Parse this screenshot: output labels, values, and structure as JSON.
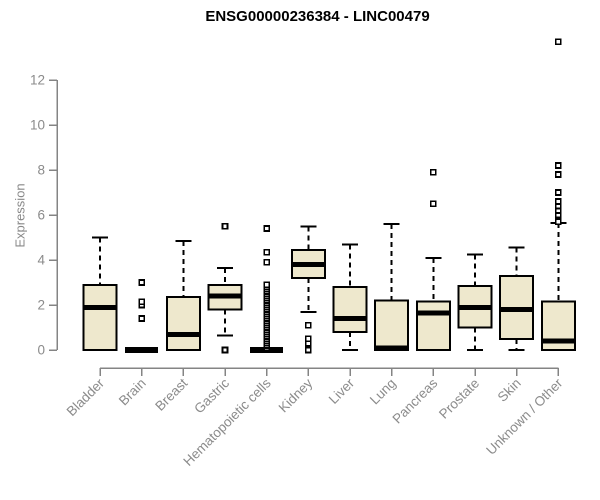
{
  "chart_data": {
    "type": "box",
    "title": "ENSG00000236384 - LINC00479",
    "ylabel": "Expression",
    "xlabel": "",
    "yticks": [
      0,
      2,
      4,
      6,
      8,
      10,
      12
    ],
    "ylim": [
      0,
      13.8
    ],
    "grid": false,
    "legend": false,
    "categories": [
      "Bladder",
      "Brain",
      "Breast",
      "Gastric",
      "Hematopoietic cells",
      "Kidney",
      "Liver",
      "Lung",
      "Pancreas",
      "Prostate",
      "Skin",
      "Unknown / Other"
    ],
    "groups": [
      {
        "label": "Bladder",
        "whislo": 0,
        "q1": 0,
        "med": 1.9,
        "q3": 2.9,
        "whishi": 5.0,
        "outliers": []
      },
      {
        "label": "Brain",
        "whislo": 0,
        "q1": 0,
        "med": 0,
        "q3": 0,
        "whishi": 0,
        "outliers": [
          1.4,
          2.0,
          2.15,
          3.0
        ]
      },
      {
        "label": "Breast",
        "whislo": 0,
        "q1": 0,
        "med": 0.7,
        "q3": 2.35,
        "whishi": 4.85,
        "outliers": []
      },
      {
        "label": "Gastric",
        "whislo": 0.65,
        "q1": 1.8,
        "med": 2.4,
        "q3": 2.9,
        "whishi": 3.65,
        "outliers": [
          0,
          5.5
        ]
      },
      {
        "label": "Hematopoietic cells",
        "whislo": 0,
        "q1": 0,
        "med": 0,
        "q3": 0,
        "whishi": 0,
        "outliers": [
          0.1,
          0.2,
          0.3,
          0.4,
          0.5,
          0.6,
          0.7,
          0.8,
          0.9,
          1.0,
          1.1,
          1.2,
          1.3,
          1.4,
          1.5,
          1.6,
          1.7,
          1.8,
          1.9,
          2.0,
          2.1,
          2.2,
          2.3,
          2.4,
          2.5,
          2.6,
          2.7,
          2.8,
          2.9,
          3.9,
          4.35,
          5.4
        ]
      },
      {
        "label": "Kidney",
        "whislo": 1.7,
        "q1": 3.2,
        "med": 3.8,
        "q3": 4.45,
        "whishi": 5.5,
        "outliers": [
          0,
          0.3,
          0.5,
          1.1
        ]
      },
      {
        "label": "Liver",
        "whislo": 0,
        "q1": 0.8,
        "med": 1.4,
        "q3": 2.8,
        "whishi": 4.7,
        "outliers": []
      },
      {
        "label": "Lung",
        "whislo": 0,
        "q1": 0,
        "med": 0.1,
        "q3": 2.2,
        "whishi": 5.6,
        "outliers": []
      },
      {
        "label": "Pancreas",
        "whislo": 0,
        "q1": 0,
        "med": 1.65,
        "q3": 2.15,
        "whishi": 4.1,
        "outliers": [
          6.5,
          7.9
        ]
      },
      {
        "label": "Prostate",
        "whislo": 0,
        "q1": 1.0,
        "med": 1.9,
        "q3": 2.85,
        "whishi": 4.25,
        "outliers": []
      },
      {
        "label": "Skin",
        "whislo": 0,
        "q1": 0.5,
        "med": 1.8,
        "q3": 3.3,
        "whishi": 4.55,
        "outliers": []
      },
      {
        "label": "Unknown / Other",
        "whislo": 0,
        "q1": 0,
        "med": 0.4,
        "q3": 2.15,
        "whishi": 5.65,
        "outliers": [
          5.7,
          6.0,
          6.2,
          6.4,
          6.6,
          7.0,
          7.8,
          8.2,
          13.7
        ]
      }
    ],
    "colors": {
      "box_fill": "#EEE8CD",
      "box_stroke": "#000000",
      "median": "#000000",
      "whisker": "#000000",
      "axis": "#848484",
      "tick_label": "#8b8b8b",
      "title": "#000000"
    }
  }
}
